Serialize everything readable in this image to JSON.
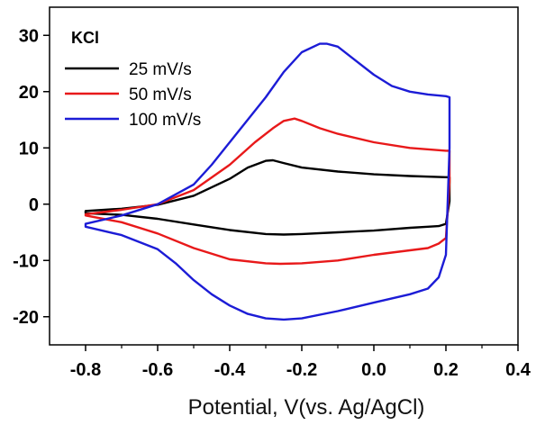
{
  "chart_data": {
    "type": "line",
    "title": "",
    "xlabel": "Potential, V(vs. Ag/AgCl)",
    "ylabel": "",
    "xlim": [
      -0.9,
      0.4
    ],
    "ylim": [
      -25,
      35
    ],
    "xticks": [
      -0.8,
      -0.6,
      -0.4,
      -0.2,
      0.0,
      0.2,
      0.4
    ],
    "xtick_labels": [
      "-0.8",
      "-0.6",
      "-0.4",
      "-0.2",
      "0.0",
      "0.2",
      "0.4"
    ],
    "yticks": [
      -20,
      -10,
      0,
      10,
      20,
      30
    ],
    "ytick_labels": [
      "-20",
      "-10",
      "0",
      "10",
      "20",
      "30"
    ],
    "grid": false,
    "legend_title": "KCl",
    "legend_position": "top-left",
    "series": [
      {
        "name": "25 mV/s",
        "color": "#000000",
        "x": [
          -0.8,
          -0.7,
          -0.6,
          -0.5,
          -0.4,
          -0.35,
          -0.3,
          -0.28,
          -0.25,
          -0.2,
          -0.1,
          0.0,
          0.1,
          0.2,
          0.21,
          0.21,
          0.2,
          0.18,
          0.15,
          0.1,
          0.0,
          -0.1,
          -0.2,
          -0.25,
          -0.3,
          -0.4,
          -0.5,
          -0.6,
          -0.7,
          -0.8
        ],
        "y": [
          -1.2,
          -0.8,
          -0.1,
          1.5,
          4.5,
          6.5,
          7.7,
          7.8,
          7.3,
          6.5,
          5.8,
          5.3,
          5.0,
          4.8,
          4.8,
          0.5,
          -3.5,
          -3.9,
          -4.0,
          -4.2,
          -4.7,
          -5.0,
          -5.3,
          -5.4,
          -5.3,
          -4.6,
          -3.6,
          -2.6,
          -1.9,
          -1.6
        ]
      },
      {
        "name": "50 mV/s",
        "color": "#e8191a",
        "x": [
          -0.8,
          -0.7,
          -0.6,
          -0.5,
          -0.4,
          -0.33,
          -0.28,
          -0.25,
          -0.22,
          -0.2,
          -0.15,
          -0.1,
          0.0,
          0.1,
          0.2,
          0.21,
          0.21,
          0.2,
          0.18,
          0.15,
          0.1,
          0.0,
          -0.1,
          -0.2,
          -0.26,
          -0.3,
          -0.4,
          -0.5,
          -0.6,
          -0.7,
          -0.8
        ],
        "y": [
          -1.8,
          -1.0,
          0.0,
          2.5,
          7.0,
          11.0,
          13.5,
          14.8,
          15.2,
          14.8,
          13.5,
          12.5,
          11.0,
          10.0,
          9.5,
          9.5,
          4.0,
          -6.0,
          -7.0,
          -7.8,
          -8.2,
          -9.0,
          -10.0,
          -10.5,
          -10.6,
          -10.5,
          -9.8,
          -7.8,
          -5.2,
          -3.2,
          -2.0
        ]
      },
      {
        "name": "100 mV/s",
        "color": "#1c1cd6",
        "x": [
          -0.8,
          -0.7,
          -0.6,
          -0.5,
          -0.45,
          -0.4,
          -0.35,
          -0.3,
          -0.25,
          -0.2,
          -0.15,
          -0.13,
          -0.1,
          -0.05,
          0.0,
          0.05,
          0.1,
          0.15,
          0.2,
          0.21,
          0.21,
          0.2,
          0.18,
          0.15,
          0.1,
          0.0,
          -0.1,
          -0.2,
          -0.25,
          -0.3,
          -0.35,
          -0.4,
          -0.45,
          -0.5,
          -0.55,
          -0.6,
          -0.7,
          -0.8
        ],
        "y": [
          -3.5,
          -2.0,
          0.0,
          3.5,
          7.0,
          11.0,
          15.0,
          19.0,
          23.5,
          27.0,
          28.5,
          28.5,
          28.0,
          25.5,
          23.0,
          21.0,
          20.0,
          19.5,
          19.2,
          19.0,
          10.0,
          -9.0,
          -13.0,
          -15.0,
          -16.0,
          -17.5,
          -19.0,
          -20.3,
          -20.5,
          -20.3,
          -19.5,
          -18.0,
          -16.0,
          -13.5,
          -10.5,
          -8.0,
          -5.5,
          -4.0
        ]
      }
    ]
  }
}
